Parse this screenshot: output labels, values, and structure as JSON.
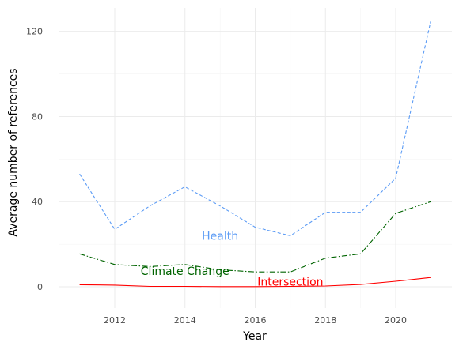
{
  "chart_data": {
    "type": "line",
    "title": "",
    "xlabel": "Year",
    "ylabel": "Average number of references",
    "xlim": [
      2010.4,
      2021.6
    ],
    "ylim": [
      -10,
      131
    ],
    "x_ticks": [
      2012,
      2014,
      2016,
      2018,
      2020
    ],
    "y_ticks": [
      0,
      40,
      80,
      120
    ],
    "grid": true,
    "legend": "none",
    "series": [
      {
        "name": "Health",
        "color": "#5b9bf5",
        "dash": "dashed",
        "x": [
          2011,
          2012,
          2013,
          2014,
          2015,
          2016,
          2017,
          2018,
          2019,
          2020,
          2021
        ],
        "values": [
          53,
          27,
          38,
          47,
          38,
          28,
          24,
          35,
          35,
          51,
          125
        ]
      },
      {
        "name": "Climate Change",
        "color": "#006400",
        "dash": "dashdot",
        "x": [
          2011,
          2012,
          2013,
          2014,
          2015,
          2016,
          2017,
          2018,
          2019,
          2020,
          2021
        ],
        "values": [
          15.5,
          10.5,
          9.5,
          10.5,
          8,
          7,
          7,
          13.5,
          15.5,
          34.5,
          40
        ]
      },
      {
        "name": "Intersection",
        "color": "#ff0000",
        "dash": "solid",
        "x": [
          2011,
          2012,
          2013,
          2014,
          2015,
          2016,
          2017,
          2018,
          2019,
          2020,
          2021
        ],
        "values": [
          1,
          0.8,
          0.2,
          0.2,
          0.1,
          0.1,
          0.2,
          0.4,
          1.1,
          2.6,
          4.4
        ]
      }
    ],
    "annotations": [
      {
        "text": "Health",
        "x": 2015,
        "y": 24,
        "color": "#5b9bf5"
      },
      {
        "text": "Climate Change",
        "x": 2014,
        "y": 7.5,
        "color": "#006400"
      },
      {
        "text": "Intersection",
        "x": 2017,
        "y": 2.5,
        "color": "#ff0000"
      }
    ]
  }
}
